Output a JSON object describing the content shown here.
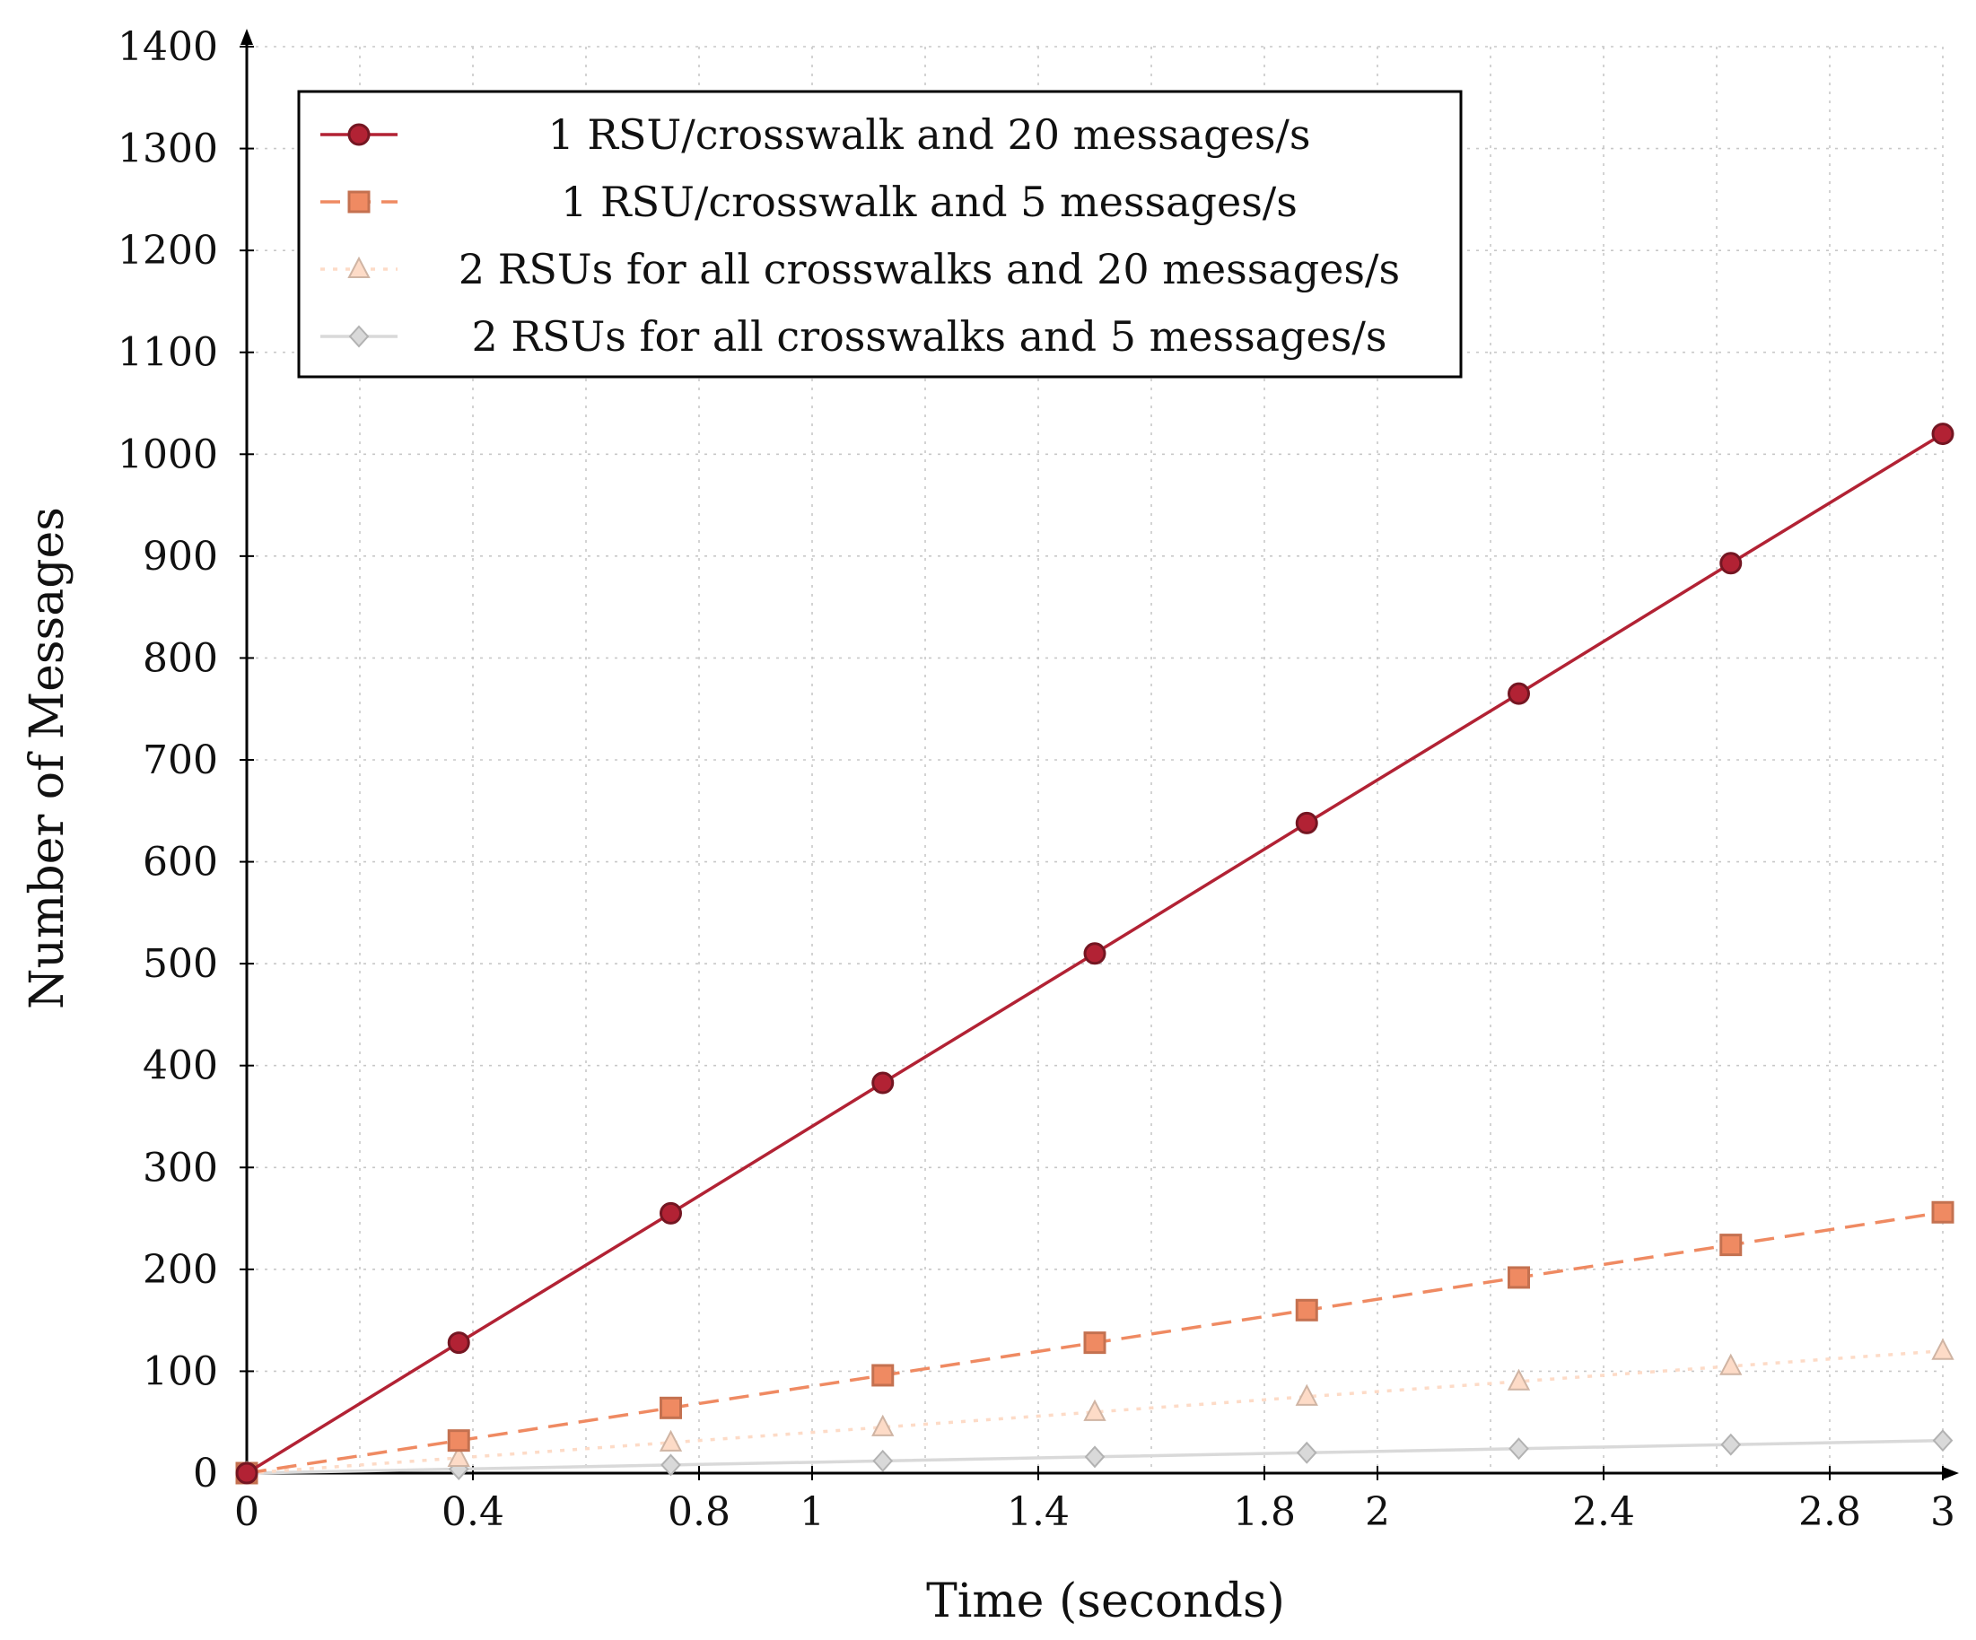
{
  "chart_data": {
    "type": "line",
    "title": "",
    "xlabel": "Time (seconds)",
    "ylabel": "Number of Messages",
    "xlim": [
      0,
      3
    ],
    "ylim": [
      0,
      1400
    ],
    "x_ticks": [
      0,
      0.4,
      0.8,
      1,
      1.4,
      1.8,
      2,
      2.4,
      2.8,
      3
    ],
    "x_tick_labels": [
      "0",
      "0.4",
      "0.8",
      "1",
      "1.4",
      "1.8",
      "2",
      "2.4",
      "2.8",
      "3"
    ],
    "y_ticks": [
      0,
      100,
      200,
      300,
      400,
      500,
      600,
      700,
      800,
      900,
      1000,
      1100,
      1200,
      1300,
      1400
    ],
    "y_tick_labels": [
      "0",
      "100",
      "200",
      "300",
      "400",
      "500",
      "600",
      "700",
      "800",
      "900",
      "1000",
      "1100",
      "1200",
      "1300",
      "1400"
    ],
    "x_minor_step": 0.2,
    "grid": true,
    "legend_position": "top-left",
    "x": [
      0,
      0.375,
      0.75,
      1.125,
      1.5,
      1.875,
      2.25,
      2.625,
      3.0
    ],
    "series": [
      {
        "name": "1 RSU/crosswalk and 20 messages/s",
        "values": [
          0,
          128,
          255,
          383,
          510,
          638,
          765,
          893,
          1020
        ],
        "color": "#b22234",
        "line_style": "solid",
        "marker": "circle"
      },
      {
        "name": "1 RSU/crosswalk and 5 messages/s",
        "values": [
          0,
          32,
          64,
          96,
          128,
          160,
          192,
          224,
          256
        ],
        "color": "#ef8a62",
        "line_style": "dashed",
        "marker": "square"
      },
      {
        "name": "2 RSUs for all crosswalks and 20 messages/s",
        "values": [
          0,
          15,
          30,
          45,
          60,
          75,
          90,
          105,
          120
        ],
        "color": "#fddbc7",
        "line_style": "dotted",
        "marker": "triangle"
      },
      {
        "name": "2 RSUs for all crosswalks and 5 messages/s",
        "values": [
          0,
          4,
          8,
          12,
          16,
          20,
          24,
          28,
          32
        ],
        "color": "#d9d9d9",
        "line_style": "solid",
        "marker": "diamond"
      }
    ]
  }
}
